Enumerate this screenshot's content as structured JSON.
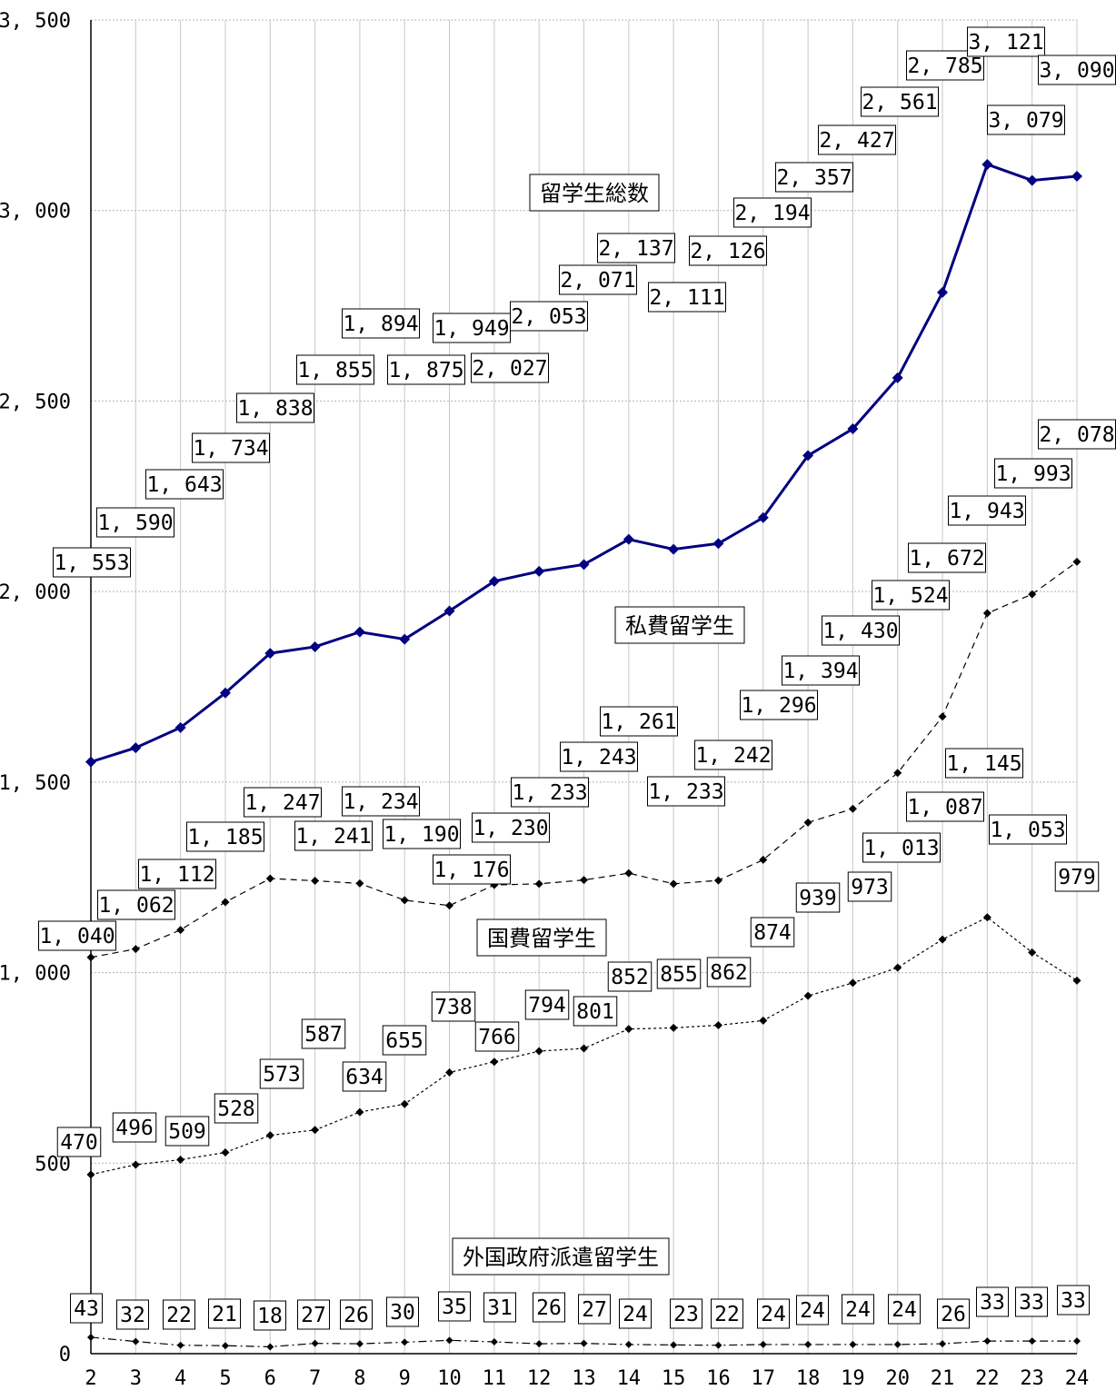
{
  "chart_data": {
    "type": "line",
    "categories": [
      "2",
      "3",
      "4",
      "5",
      "6",
      "7",
      "8",
      "9",
      "10",
      "11",
      "12",
      "13",
      "14",
      "15",
      "16",
      "17",
      "18",
      "19",
      "20",
      "21",
      "22",
      "23",
      "24"
    ],
    "ylim": [
      0,
      3500
    ],
    "yticks": [
      0,
      500,
      1000,
      1500,
      2000,
      2500,
      3000,
      3500
    ],
    "ytick_labels": [
      "0",
      "500",
      "1, 000",
      "1, 500",
      "2, 000",
      "2, 500",
      "3, 000",
      "3, 500"
    ],
    "grid": true,
    "series": [
      {
        "name": "留学生総数",
        "color": "#000080",
        "style": "solid",
        "values": [
          1553,
          1590,
          1643,
          1734,
          1838,
          1855,
          1894,
          1875,
          1949,
          2027,
          2053,
          2071,
          2137,
          2111,
          2126,
          2194,
          2357,
          2427,
          2561,
          2785,
          3121,
          3079,
          3090
        ],
        "value_labels": [
          "1, 553",
          "1, 590",
          "1, 643",
          "1, 734",
          "1, 838",
          "1, 855",
          "1, 894",
          "1, 875",
          "1, 949",
          "2, 027",
          "2, 053",
          "2, 071",
          "2, 137",
          "2, 111",
          "2, 126",
          "2, 194",
          "2, 357",
          "2, 427",
          "2, 561",
          "2, 785",
          "3, 121",
          "3, 079",
          "3, 090"
        ]
      },
      {
        "name": "私費留学生",
        "color": "#000000",
        "style": "dashed",
        "values": [
          1040,
          1062,
          1112,
          1185,
          1247,
          1241,
          1234,
          1190,
          1176,
          1230,
          1233,
          1243,
          1261,
          1233,
          1242,
          1296,
          1394,
          1430,
          1524,
          1672,
          1943,
          1993,
          2078
        ],
        "value_labels": [
          "1, 040",
          "1, 062",
          "1, 112",
          "1, 185",
          "1, 247",
          "1, 241",
          "1, 234",
          "1, 190",
          "1, 176",
          "1, 230",
          "1, 233",
          "1, 243",
          "1, 261",
          "1, 233",
          "1, 242",
          "1, 296",
          "1, 394",
          "1, 430",
          "1, 524",
          "1, 672",
          "1, 943",
          "1, 993",
          "2, 078"
        ]
      },
      {
        "name": "国費留学生",
        "color": "#000000",
        "style": "dotted",
        "values": [
          470,
          496,
          509,
          528,
          573,
          587,
          634,
          655,
          738,
          766,
          794,
          801,
          852,
          855,
          862,
          874,
          939,
          973,
          1013,
          1087,
          1145,
          1053,
          979
        ],
        "value_labels": [
          "470",
          "496",
          "509",
          "528",
          "573",
          "587",
          "634",
          "655",
          "738",
          "766",
          "794",
          "801",
          "852",
          "855",
          "862",
          "874",
          "939",
          "973",
          "1, 013",
          "1, 087",
          "1, 145",
          "1, 053",
          "979"
        ]
      },
      {
        "name": "外国政府派遣留学生",
        "color": "#000000",
        "style": "dashdot",
        "values": [
          43,
          32,
          22,
          21,
          18,
          27,
          26,
          30,
          35,
          31,
          26,
          27,
          24,
          23,
          22,
          24,
          24,
          24,
          24,
          26,
          33,
          33,
          33
        ],
        "value_labels": [
          "43",
          "32",
          "22",
          "21",
          "18",
          "27",
          "26",
          "30",
          "35",
          "31",
          "26",
          "27",
          "24",
          "23",
          "22",
          "24",
          "24",
          "24",
          "24",
          "26",
          "33",
          "33",
          "33"
        ]
      }
    ]
  }
}
